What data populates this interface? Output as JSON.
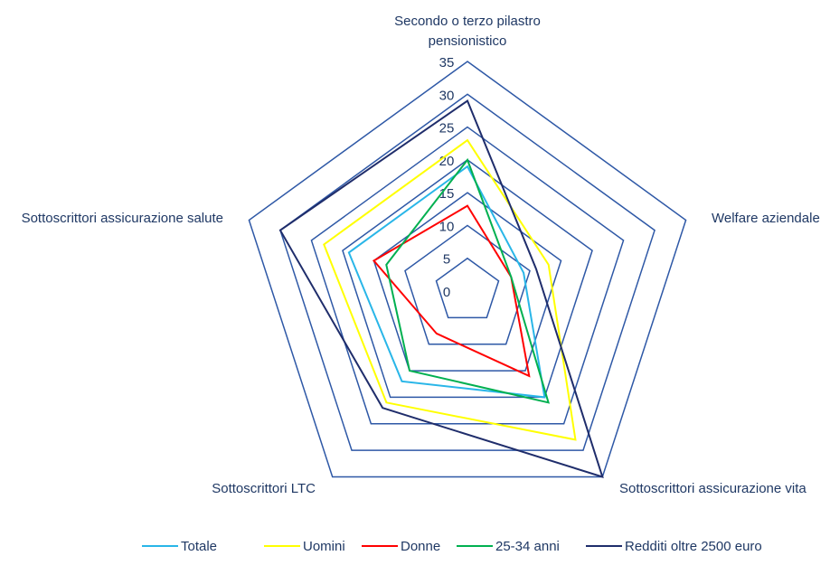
{
  "chart_data": {
    "type": "radar",
    "title": "",
    "axes": [
      [
        "Secondo o terzo pilastro",
        "pensionistico"
      ],
      [
        "Welfare aziendale"
      ],
      [
        "Sottoscrittori assicurazione vita"
      ],
      [
        "Sottoscrittori LTC"
      ],
      [
        "Sottoscrittori assicurazione salute"
      ]
    ],
    "rlim": [
      0,
      35
    ],
    "ticks": [
      0,
      5,
      10,
      15,
      20,
      25,
      30,
      35
    ],
    "tick_labels": [
      "0",
      "5",
      "10",
      "15",
      "20",
      "25",
      "30",
      "35"
    ],
    "series": [
      {
        "name": "Totale",
        "color": "#29b6e8",
        "values": [
          19,
          9,
          20,
          17,
          19
        ]
      },
      {
        "name": "Uomini",
        "color": "#ffff00",
        "values": [
          23,
          13,
          28,
          21,
          23
        ]
      },
      {
        "name": "Donne",
        "color": "#ff0000",
        "values": [
          13,
          7,
          16,
          8,
          15
        ]
      },
      {
        "name": "25-34 anni",
        "color": "#00b050",
        "values": [
          20,
          7,
          21,
          15,
          13
        ]
      },
      {
        "name": "Redditi oltre 2500 euro",
        "color": "#1f2d6b",
        "values": [
          29,
          11,
          35,
          22,
          30
        ]
      }
    ],
    "grid_color": "#2e58a6",
    "legend_position": "bottom"
  }
}
